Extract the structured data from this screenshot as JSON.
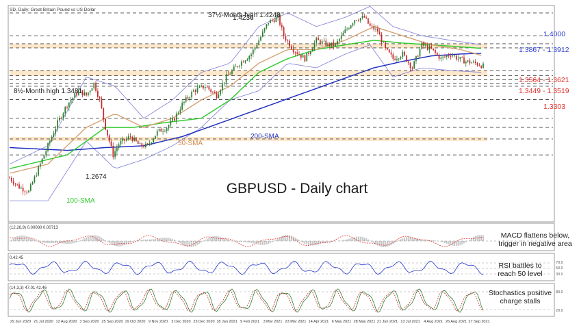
{
  "header": {
    "symbol_text": "SD, Daily:  Great Britain Pound vs US Dollar"
  },
  "main_title": "GBPUSD - Daily chart",
  "colors": {
    "sma50": "#d4a373",
    "sma100": "#33cc33",
    "sma200": "#1f2fbf",
    "bollinger": "#8a8adb",
    "bull": "#2e7d32",
    "bear": "#c62828",
    "zone": "#fde8cc",
    "blue_label": "#2b3fd1",
    "red_label": "#e0332e"
  },
  "chart_data": [
    {
      "type": "candlestick",
      "title": "GBPUSD - Daily chart",
      "x_ticks": [
        "29 Jun 2020",
        "21 Jul 2020",
        "12 Aug 2020",
        "3 Sep 2020",
        "25 Sep 2020",
        "19 Oct 2020",
        "9 Nov 2020",
        "3 Dec 2020",
        "23 Dec 2020",
        "18 Jan 2021",
        "9 Feb 2021",
        "3 Mar 2021",
        "23 Mar 2021",
        "14 Apr 2021",
        "6 May 2021",
        "28 May 2021",
        "21 Jun 2021",
        "13 Jul 2021",
        "4 Aug 2021",
        "26 Aug 2021",
        "27 Sep 2021"
      ],
      "y_range": [
        1.2,
        1.43
      ],
      "price_path": [
        [
          0,
          1.245
        ],
        [
          5,
          1.235
        ],
        [
          10,
          1.23
        ],
        [
          14,
          1.25
        ],
        [
          18,
          1.27
        ],
        [
          25,
          1.305
        ],
        [
          30,
          1.325
        ],
        [
          36,
          1.34
        ],
        [
          40,
          1.335
        ],
        [
          44,
          1.348
        ],
        [
          47,
          1.33
        ],
        [
          50,
          1.3
        ],
        [
          54,
          1.27
        ],
        [
          57,
          1.282
        ],
        [
          63,
          1.29
        ],
        [
          68,
          1.28
        ],
        [
          72,
          1.28
        ],
        [
          77,
          1.295
        ],
        [
          82,
          1.3
        ],
        [
          86,
          1.31
        ],
        [
          90,
          1.325
        ],
        [
          96,
          1.34
        ],
        [
          102,
          1.345
        ],
        [
          108,
          1.335
        ],
        [
          113,
          1.355
        ],
        [
          120,
          1.37
        ],
        [
          126,
          1.38
        ],
        [
          130,
          1.395
        ],
        [
          135,
          1.415
        ],
        [
          140,
          1.42
        ],
        [
          143,
          1.4
        ],
        [
          148,
          1.385
        ],
        [
          154,
          1.375
        ],
        [
          160,
          1.395
        ],
        [
          166,
          1.39
        ],
        [
          170,
          1.39
        ],
        [
          175,
          1.405
        ],
        [
          180,
          1.418
        ],
        [
          185,
          1.42
        ],
        [
          188,
          1.41
        ],
        [
          192,
          1.405
        ],
        [
          196,
          1.385
        ],
        [
          200,
          1.375
        ],
        [
          205,
          1.38
        ],
        [
          210,
          1.365
        ],
        [
          215,
          1.39
        ],
        [
          220,
          1.385
        ],
        [
          225,
          1.375
        ],
        [
          230,
          1.38
        ],
        [
          234,
          1.375
        ],
        [
          238,
          1.372
        ],
        [
          243,
          1.37
        ],
        [
          247,
          1.367
        ]
      ],
      "sma50_path": [
        [
          0,
          1.25
        ],
        [
          20,
          1.26
        ],
        [
          40,
          1.3
        ],
        [
          55,
          1.315
        ],
        [
          70,
          1.3
        ],
        [
          85,
          1.31
        ],
        [
          100,
          1.33
        ],
        [
          115,
          1.345
        ],
        [
          130,
          1.37
        ],
        [
          145,
          1.385
        ],
        [
          160,
          1.385
        ],
        [
          175,
          1.395
        ],
        [
          190,
          1.41
        ],
        [
          205,
          1.4
        ],
        [
          220,
          1.39
        ],
        [
          235,
          1.385
        ],
        [
          247,
          1.378
        ]
      ],
      "sma100_path": [
        [
          0,
          1.255
        ],
        [
          30,
          1.27
        ],
        [
          50,
          1.3
        ],
        [
          65,
          1.3
        ],
        [
          80,
          1.305
        ],
        [
          100,
          1.31
        ],
        [
          115,
          1.33
        ],
        [
          130,
          1.36
        ],
        [
          145,
          1.375
        ],
        [
          160,
          1.385
        ],
        [
          175,
          1.39
        ],
        [
          190,
          1.395
        ],
        [
          205,
          1.392
        ],
        [
          220,
          1.39
        ],
        [
          235,
          1.388
        ],
        [
          247,
          1.386
        ]
      ],
      "sma200_path": [
        [
          0,
          1.278
        ],
        [
          30,
          1.275
        ],
        [
          50,
          1.278
        ],
        [
          70,
          1.28
        ],
        [
          90,
          1.29
        ],
        [
          110,
          1.305
        ],
        [
          130,
          1.32
        ],
        [
          150,
          1.335
        ],
        [
          170,
          1.35
        ],
        [
          190,
          1.365
        ],
        [
          205,
          1.372
        ],
        [
          220,
          1.378
        ],
        [
          235,
          1.38
        ],
        [
          247,
          1.381
        ]
      ],
      "bb_upper_path": [
        [
          0,
          1.26
        ],
        [
          20,
          1.28
        ],
        [
          40,
          1.355
        ],
        [
          55,
          1.345
        ],
        [
          70,
          1.31
        ],
        [
          85,
          1.33
        ],
        [
          100,
          1.36
        ],
        [
          115,
          1.37
        ],
        [
          130,
          1.41
        ],
        [
          145,
          1.425
        ],
        [
          160,
          1.41
        ],
        [
          175,
          1.42
        ],
        [
          188,
          1.432
        ],
        [
          200,
          1.41
        ],
        [
          215,
          1.4
        ],
        [
          230,
          1.395
        ],
        [
          247,
          1.39
        ]
      ],
      "bb_lower_path": [
        [
          0,
          1.22
        ],
        [
          20,
          1.22
        ],
        [
          40,
          1.285
        ],
        [
          55,
          1.255
        ],
        [
          70,
          1.265
        ],
        [
          85,
          1.28
        ],
        [
          100,
          1.3
        ],
        [
          115,
          1.33
        ],
        [
          130,
          1.34
        ],
        [
          145,
          1.37
        ],
        [
          160,
          1.365
        ],
        [
          175,
          1.38
        ],
        [
          188,
          1.39
        ],
        [
          200,
          1.355
        ],
        [
          215,
          1.365
        ],
        [
          230,
          1.362
        ],
        [
          247,
          1.36
        ]
      ],
      "horizontal_levels": [
        1.4248,
        1.4,
        1.3867,
        1.3912,
        1.3564,
        1.3621,
        1.3449,
        1.3519,
        1.3481,
        1.3303,
        1.31,
        1.3,
        1.2874,
        1.27
      ],
      "support_zones": [
        [
          1.3564,
          1.3621
        ],
        [
          1.3867,
          1.3912
        ],
        [
          1.2874,
          1.2874
        ]
      ],
      "annotations": {
        "month_high": "37½-Month high 1.4248",
        "peak": "1.4236",
        "eight_month_high": "8½-Month high 1.3481",
        "low_1": "1.2674",
        "level_1": "1.4000",
        "level_2": "1.3867 - 1.3912",
        "level_3": "1.3564 - 1.3621",
        "level_4": "1.3449 - 1.3519",
        "level_5": "1.3303",
        "sma50": "50-SMA",
        "sma100": "100-SMA",
        "sma200": "200-SMA"
      }
    },
    {
      "type": "line",
      "name": "MACD",
      "header": "(12,26,9) 0.00080 0.00713",
      "annotation": [
        "MACD flattens below,",
        "trigger in negative area"
      ]
    },
    {
      "type": "line",
      "name": "RSI",
      "header": "0.42.45",
      "levels": [
        "70.0",
        "50.0",
        "30.0"
      ],
      "annotation": [
        "RSI battles to",
        "reach 50 level"
      ]
    },
    {
      "type": "line",
      "name": "Stochastics",
      "header": "(14,3,3) 47.01 42.46",
      "levels": [
        "80.0",
        "20.0"
      ],
      "annotation": [
        "Stochastics positive",
        "charge stalls"
      ]
    }
  ]
}
